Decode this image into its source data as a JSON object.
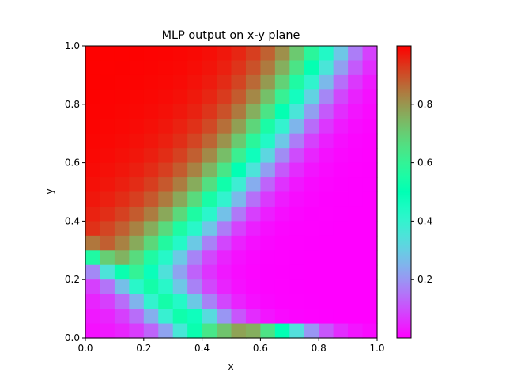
{
  "chart_data": {
    "type": "heatmap",
    "title": "MLP output on x-y plane",
    "xlabel": "x",
    "ylabel": "y",
    "xlim": [
      0,
      1
    ],
    "ylim": [
      0,
      1
    ],
    "grid": false,
    "colormap": "rainbow",
    "color_range": [
      0.0,
      1.0
    ],
    "cells_per_axis": 20,
    "row_order": "top-to-bottom (y from 1.0 down to 0.0)",
    "z": [
      [
        0.998,
        0.998,
        0.998,
        0.997,
        0.996,
        0.995,
        0.993,
        0.989,
        0.982,
        0.971,
        0.952,
        0.922,
        0.876,
        0.809,
        0.711,
        0.583,
        0.433,
        0.284,
        0.163,
        0.082
      ],
      [
        0.998,
        0.998,
        0.997,
        0.996,
        0.995,
        0.993,
        0.99,
        0.984,
        0.975,
        0.96,
        0.935,
        0.897,
        0.841,
        0.76,
        0.647,
        0.508,
        0.355,
        0.216,
        0.115,
        0.056
      ],
      [
        0.998,
        0.997,
        0.996,
        0.995,
        0.993,
        0.99,
        0.986,
        0.978,
        0.966,
        0.946,
        0.914,
        0.865,
        0.793,
        0.692,
        0.56,
        0.406,
        0.258,
        0.143,
        0.071,
        0.033
      ],
      [
        0.997,
        0.996,
        0.995,
        0.993,
        0.99,
        0.986,
        0.98,
        0.969,
        0.952,
        0.926,
        0.884,
        0.821,
        0.729,
        0.607,
        0.46,
        0.307,
        0.177,
        0.09,
        0.043,
        0.02
      ],
      [
        0.996,
        0.995,
        0.993,
        0.99,
        0.986,
        0.98,
        0.971,
        0.957,
        0.933,
        0.897,
        0.842,
        0.76,
        0.647,
        0.508,
        0.355,
        0.216,
        0.115,
        0.056,
        0.026,
        0.012
      ],
      [
        0.995,
        0.993,
        0.99,
        0.986,
        0.98,
        0.971,
        0.958,
        0.939,
        0.907,
        0.857,
        0.785,
        0.682,
        0.55,
        0.398,
        0.252,
        0.139,
        0.069,
        0.032,
        0.015,
        0.007
      ],
      [
        0.993,
        0.99,
        0.986,
        0.98,
        0.972,
        0.96,
        0.942,
        0.913,
        0.87,
        0.804,
        0.71,
        0.583,
        0.433,
        0.284,
        0.163,
        0.082,
        0.039,
        0.018,
        0.008,
        0.004
      ],
      [
        0.99,
        0.986,
        0.98,
        0.972,
        0.961,
        0.944,
        0.918,
        0.878,
        0.818,
        0.733,
        0.615,
        0.471,
        0.318,
        0.186,
        0.096,
        0.046,
        0.021,
        0.01,
        0.005,
        0.002
      ],
      [
        0.986,
        0.98,
        0.972,
        0.961,
        0.945,
        0.921,
        0.884,
        0.83,
        0.75,
        0.641,
        0.502,
        0.351,
        0.213,
        0.113,
        0.055,
        0.025,
        0.012,
        0.005,
        0.002,
        0.001
      ],
      [
        0.98,
        0.972,
        0.961,
        0.945,
        0.922,
        0.888,
        0.838,
        0.765,
        0.663,
        0.531,
        0.379,
        0.237,
        0.128,
        0.063,
        0.029,
        0.013,
        0.006,
        0.003,
        0.001,
        0.001
      ],
      [
        0.971,
        0.96,
        0.944,
        0.921,
        0.888,
        0.84,
        0.771,
        0.674,
        0.548,
        0.401,
        0.259,
        0.145,
        0.072,
        0.034,
        0.015,
        0.007,
        0.003,
        0.001,
        0.001,
        0.0
      ],
      [
        0.958,
        0.942,
        0.918,
        0.884,
        0.838,
        0.771,
        0.679,
        0.557,
        0.415,
        0.274,
        0.157,
        0.079,
        0.037,
        0.017,
        0.008,
        0.003,
        0.002,
        0.001,
        0.0,
        0.0
      ],
      [
        0.939,
        0.913,
        0.878,
        0.83,
        0.765,
        0.674,
        0.557,
        0.42,
        0.281,
        0.163,
        0.083,
        0.039,
        0.018,
        0.008,
        0.004,
        0.002,
        0.001,
        0.0,
        0.0,
        0.0
      ],
      [
        0.845,
        0.878,
        0.83,
        0.767,
        0.681,
        0.567,
        0.43,
        0.29,
        0.171,
        0.088,
        0.042,
        0.019,
        0.009,
        0.004,
        0.002,
        0.001,
        0.0,
        0.0,
        0.0,
        0.0
      ],
      [
        0.56,
        0.7,
        0.752,
        0.672,
        0.56,
        0.425,
        0.289,
        0.173,
        0.091,
        0.044,
        0.02,
        0.009,
        0.004,
        0.002,
        0.001,
        0.0,
        0.0,
        0.0,
        0.0,
        0.0
      ],
      [
        0.18,
        0.35,
        0.52,
        0.6,
        0.48,
        0.345,
        0.22,
        0.125,
        0.064,
        0.03,
        0.014,
        0.006,
        0.003,
        0.001,
        0.001,
        0.0,
        0.0,
        0.0,
        0.0,
        0.0
      ],
      [
        0.08,
        0.15,
        0.27,
        0.42,
        0.54,
        0.42,
        0.285,
        0.17,
        0.09,
        0.044,
        0.02,
        0.009,
        0.004,
        0.002,
        0.001,
        0.0,
        0.0,
        0.0,
        0.0,
        0.0
      ],
      [
        0.045,
        0.08,
        0.14,
        0.25,
        0.4,
        0.54,
        0.43,
        0.29,
        0.17,
        0.088,
        0.042,
        0.019,
        0.009,
        0.004,
        0.002,
        0.001,
        0.0,
        0.0,
        0.0,
        0.0
      ],
      [
        0.03,
        0.045,
        0.08,
        0.14,
        0.24,
        0.39,
        0.53,
        0.47,
        0.33,
        0.2,
        0.11,
        0.055,
        0.026,
        0.012,
        0.005,
        0.002,
        0.001,
        0.0,
        0.0,
        0.0
      ],
      [
        0.02,
        0.03,
        0.045,
        0.075,
        0.13,
        0.22,
        0.36,
        0.52,
        0.64,
        0.72,
        0.78,
        0.76,
        0.65,
        0.5,
        0.34,
        0.2,
        0.11,
        0.055,
        0.026,
        0.012
      ]
    ],
    "xticks": [
      {
        "value": 0.0,
        "label": "0.0"
      },
      {
        "value": 0.2,
        "label": "0.2"
      },
      {
        "value": 0.4,
        "label": "0.4"
      },
      {
        "value": 0.6,
        "label": "0.6"
      },
      {
        "value": 0.8,
        "label": "0.8"
      },
      {
        "value": 1.0,
        "label": "1.0"
      }
    ],
    "yticks": [
      {
        "value": 0.0,
        "label": "0.0"
      },
      {
        "value": 0.2,
        "label": "0.2"
      },
      {
        "value": 0.4,
        "label": "0.4"
      },
      {
        "value": 0.6,
        "label": "0.6"
      },
      {
        "value": 0.8,
        "label": "0.8"
      },
      {
        "value": 1.0,
        "label": "1.0"
      }
    ],
    "colorbar": {
      "placement": "right",
      "ticks": [
        {
          "value": 0.2,
          "label": "0.2"
        },
        {
          "value": 0.4,
          "label": "0.4"
        },
        {
          "value": 0.6,
          "label": "0.6"
        },
        {
          "value": 0.8,
          "label": "0.8"
        }
      ]
    }
  }
}
